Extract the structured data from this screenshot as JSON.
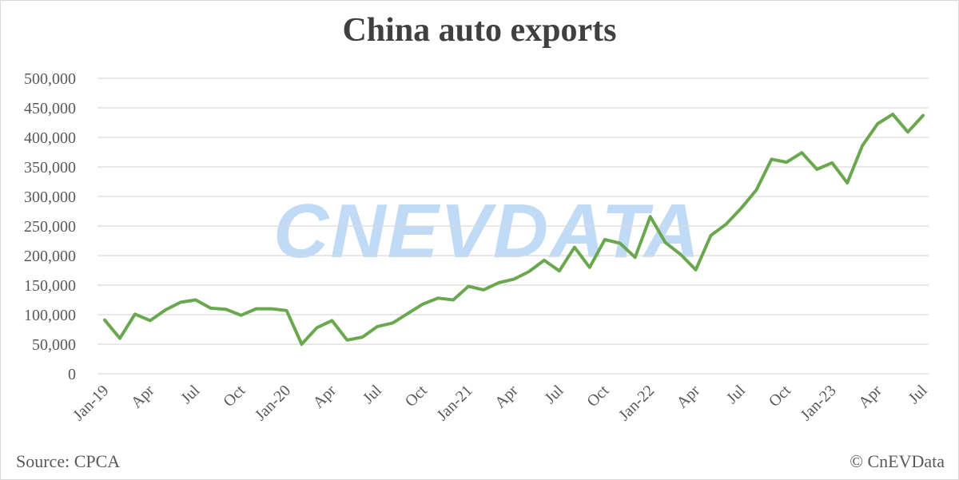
{
  "title": "China auto exports",
  "source": "Source: CPCA",
  "copyright": "© CnEVData",
  "watermark": "CNEVDATA",
  "colors": {
    "line": "#6aa84f",
    "grid": "#d9d9d9",
    "text": "#595959",
    "title": "#404040"
  },
  "chart_data": {
    "type": "line",
    "title": "China auto exports",
    "xlabel": "",
    "ylabel": "",
    "ylim": [
      0,
      500000
    ],
    "yticks": [
      "0",
      "50,000",
      "100,000",
      "150,000",
      "200,000",
      "250,000",
      "300,000",
      "350,000",
      "400,000",
      "450,000",
      "500,000"
    ],
    "xtick_labels": [
      {
        "index": 0,
        "label": "Jan-19"
      },
      {
        "index": 3,
        "label": "Apr"
      },
      {
        "index": 6,
        "label": "Jul"
      },
      {
        "index": 9,
        "label": "Oct"
      },
      {
        "index": 12,
        "label": "Jan-20"
      },
      {
        "index": 15,
        "label": "Apr"
      },
      {
        "index": 18,
        "label": "Jul"
      },
      {
        "index": 21,
        "label": "Oct"
      },
      {
        "index": 24,
        "label": "Jan-21"
      },
      {
        "index": 27,
        "label": "Apr"
      },
      {
        "index": 30,
        "label": "Jul"
      },
      {
        "index": 33,
        "label": "Oct"
      },
      {
        "index": 36,
        "label": "Jan-22"
      },
      {
        "index": 39,
        "label": "Apr"
      },
      {
        "index": 42,
        "label": "Jul"
      },
      {
        "index": 45,
        "label": "Oct"
      },
      {
        "index": 48,
        "label": "Jan-23"
      },
      {
        "index": 51,
        "label": "Apr"
      },
      {
        "index": 54,
        "label": "Jul"
      }
    ],
    "grid": true,
    "legend": "none",
    "series": [
      {
        "values": [
          91000,
          60000,
          101000,
          90000,
          108000,
          121000,
          125000,
          111000,
          109000,
          99000,
          110000,
          110000,
          107000,
          50000,
          78000,
          90000,
          57000,
          62000,
          80000,
          86000,
          102000,
          118000,
          128000,
          125000,
          148000,
          142000,
          154000,
          160000,
          173000,
          192000,
          174000,
          214000,
          180000,
          227000,
          221000,
          197000,
          266000,
          222000,
          202000,
          176000,
          234000,
          253000,
          280000,
          311000,
          363000,
          358000,
          374000,
          346000,
          357000,
          323000,
          386000,
          423000,
          439000,
          409000,
          437000
        ]
      }
    ]
  }
}
